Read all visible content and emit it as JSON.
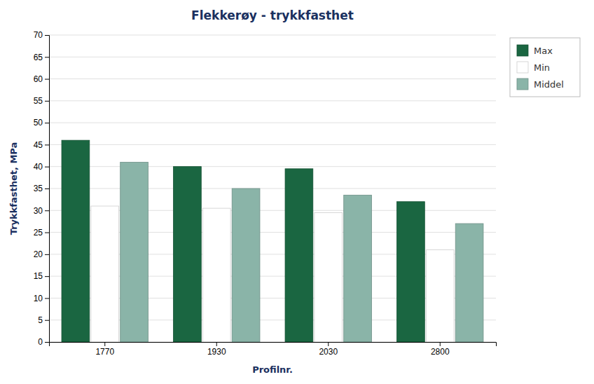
{
  "chart_data": {
    "type": "bar",
    "title": "Flekkerøy - trykkfasthet",
    "xlabel": "Profilnr.",
    "ylabel": "Trykkfasthet, MPa",
    "categories": [
      "1770",
      "1930",
      "2030",
      "2800"
    ],
    "series": [
      {
        "name": "Max",
        "color": "#1a6641",
        "values": [
          46,
          40,
          39.5,
          32
        ]
      },
      {
        "name": "Min",
        "color": "#ffffff",
        "values": [
          31,
          30.5,
          29.5,
          21
        ]
      },
      {
        "name": "Middel",
        "color": "#8ab4a8",
        "values": [
          41,
          35,
          33.5,
          27
        ]
      }
    ],
    "ylim": [
      0,
      70
    ],
    "yticks": [
      0,
      5,
      10,
      15,
      20,
      25,
      30,
      35,
      40,
      45,
      50,
      55,
      60,
      65,
      70
    ],
    "grid": true,
    "legend": "right"
  }
}
